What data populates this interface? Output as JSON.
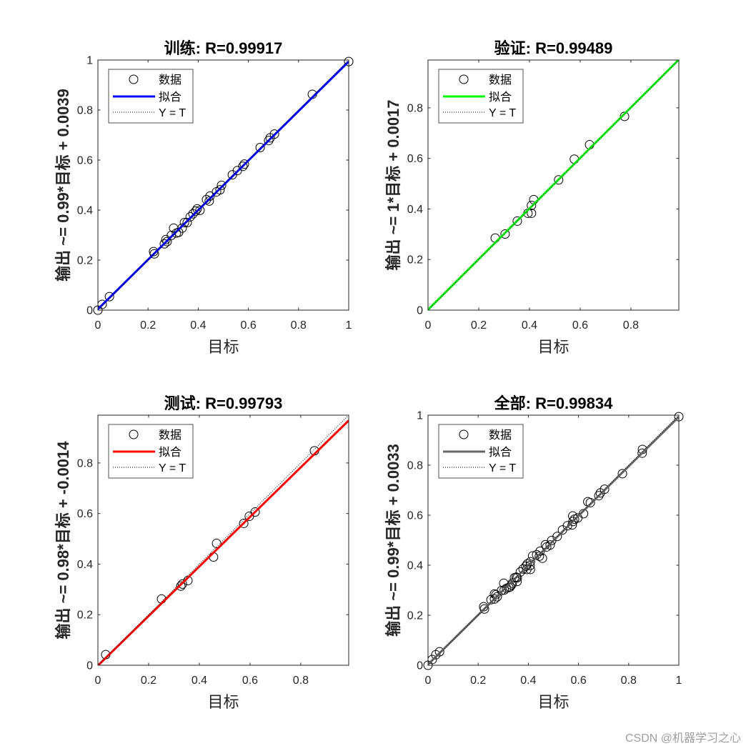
{
  "figure": {
    "background": "#ffffff",
    "axes_color": "#262626",
    "watermark": "CSDN @机器学习之心",
    "watermark_color": "#9e9e9e"
  },
  "chart_data": [
    {
      "type": "scatter",
      "title": "训练: R=0.99917",
      "xlabel": "目标",
      "ylabel": "输出 ~= 0.99*目标 + 0.0039",
      "xlim": [
        0,
        1
      ],
      "ylim": [
        0,
        1
      ],
      "xticks": [
        0,
        0.2,
        0.4,
        0.6,
        0.8,
        1
      ],
      "xtick_labels": [
        "0",
        "0.2",
        "0.4",
        "0.6",
        "0.8",
        "1"
      ],
      "yticks": [
        0,
        0.2,
        0.4,
        0.6,
        0.8,
        1
      ],
      "ytick_labels": [
        "0",
        "0.2",
        "0.4",
        "0.6",
        "0.8",
        "1"
      ],
      "grid": false,
      "legend_position": "top-left",
      "series": [
        {
          "name": "数据",
          "type": "scatter",
          "marker": "circle",
          "color": "#000000",
          "x": [
            0,
            0.017,
            0.046,
            0.222,
            0.225,
            0.265,
            0.271,
            0.276,
            0.293,
            0.302,
            0.313,
            0.322,
            0.336,
            0.345,
            0.356,
            0.368,
            0.379,
            0.39,
            0.396,
            0.407,
            0.433,
            0.444,
            0.447,
            0.473,
            0.487,
            0.493,
            0.536,
            0.556,
            0.578,
            0.584,
            0.647,
            0.681,
            0.687,
            0.704,
            0.855,
            1.0
          ],
          "y": [
            0,
            0.023,
            0.054,
            0.234,
            0.225,
            0.265,
            0.282,
            0.274,
            0.299,
            0.328,
            0.308,
            0.311,
            0.328,
            0.35,
            0.35,
            0.373,
            0.385,
            0.396,
            0.405,
            0.399,
            0.442,
            0.436,
            0.456,
            0.473,
            0.481,
            0.499,
            0.541,
            0.558,
            0.575,
            0.584,
            0.65,
            0.678,
            0.689,
            0.704,
            0.863,
            0.994
          ]
        },
        {
          "name": "拟合",
          "type": "line",
          "slope": 0.99,
          "intercept": 0.0039,
          "style": "solid",
          "color": "#0000ff"
        },
        {
          "name": "Y = T",
          "type": "line",
          "slope": 1,
          "intercept": 0,
          "style": "dotted",
          "color": "#000000"
        }
      ]
    },
    {
      "type": "scatter",
      "title": "验证: R=0.99489",
      "xlabel": "目标",
      "ylabel": "输出 ~= 1*目标 + 0.0017",
      "xlim": [
        0,
        0.989
      ],
      "ylim": [
        0,
        0.989
      ],
      "xticks": [
        0,
        0.2,
        0.4,
        0.6,
        0.8
      ],
      "xtick_labels": [
        "0",
        "0.2",
        "0.4",
        "0.6",
        "0.8"
      ],
      "yticks": [
        0,
        0.2,
        0.4,
        0.6,
        0.8
      ],
      "ytick_labels": [
        "0",
        "0.2",
        "0.4",
        "0.6",
        "0.8"
      ],
      "grid": false,
      "legend_position": "top-left",
      "series": [
        {
          "name": "数据",
          "type": "scatter",
          "marker": "circle",
          "color": "#000000",
          "x": [
            0.265,
            0.304,
            0.352,
            0.394,
            0.408,
            0.408,
            0.417,
            0.515,
            0.577,
            0.637,
            0.775
          ],
          "y": [
            0.285,
            0.301,
            0.352,
            0.383,
            0.383,
            0.414,
            0.437,
            0.515,
            0.597,
            0.654,
            0.766
          ]
        },
        {
          "name": "拟合",
          "type": "line",
          "slope": 1,
          "intercept": 0.0017,
          "style": "solid",
          "color": "#00ff00"
        },
        {
          "name": "Y = T",
          "type": "line",
          "slope": 1,
          "intercept": 0,
          "style": "dotted",
          "color": "#000000"
        }
      ]
    },
    {
      "type": "scatter",
      "title": "测试: R=0.99793",
      "xlabel": "目标",
      "ylabel": "输出 ~= 0.98*目标 + -0.0014",
      "xlim": [
        0,
        0.989
      ],
      "ylim": [
        0,
        0.989
      ],
      "xticks": [
        0,
        0.2,
        0.4,
        0.6,
        0.8
      ],
      "xtick_labels": [
        "0",
        "0.2",
        "0.4",
        "0.6",
        "0.8"
      ],
      "yticks": [
        0,
        0.2,
        0.4,
        0.6,
        0.8
      ],
      "ytick_labels": [
        "0",
        "0.2",
        "0.4",
        "0.6",
        "0.8"
      ],
      "grid": false,
      "legend_position": "top-left",
      "series": [
        {
          "name": "数据",
          "type": "scatter",
          "marker": "circle",
          "color": "#000000",
          "x": [
            0.031,
            0.251,
            0.327,
            0.333,
            0.355,
            0.456,
            0.468,
            0.575,
            0.597,
            0.62,
            0.854
          ],
          "y": [
            0.042,
            0.262,
            0.313,
            0.321,
            0.335,
            0.428,
            0.482,
            0.561,
            0.589,
            0.606,
            0.848
          ]
        },
        {
          "name": "拟合",
          "type": "line",
          "slope": 0.98,
          "intercept": -0.0014,
          "style": "solid",
          "color": "#ff0000"
        },
        {
          "name": "Y = T",
          "type": "line",
          "slope": 1,
          "intercept": 0,
          "style": "dotted",
          "color": "#000000"
        }
      ]
    },
    {
      "type": "scatter",
      "title": "全部: R=0.99834",
      "xlabel": "目标",
      "ylabel": "输出 ~= 0.99*目标 + 0.0033",
      "xlim": [
        0,
        1
      ],
      "ylim": [
        0,
        1
      ],
      "xticks": [
        0,
        0.2,
        0.4,
        0.6,
        0.8,
        1
      ],
      "xtick_labels": [
        "0",
        "0.2",
        "0.4",
        "0.6",
        "0.8",
        "1"
      ],
      "yticks": [
        0,
        0.2,
        0.4,
        0.6,
        0.8,
        1
      ],
      "ytick_labels": [
        "0",
        "0.2",
        "0.4",
        "0.6",
        "0.8",
        "1"
      ],
      "grid": false,
      "legend_position": "top-left",
      "series": [
        {
          "name": "数据",
          "type": "scatter",
          "marker": "circle",
          "color": "#000000",
          "x": [
            0,
            0.017,
            0.046,
            0.222,
            0.225,
            0.265,
            0.271,
            0.276,
            0.293,
            0.302,
            0.313,
            0.322,
            0.336,
            0.345,
            0.356,
            0.368,
            0.379,
            0.39,
            0.396,
            0.407,
            0.433,
            0.444,
            0.447,
            0.473,
            0.487,
            0.493,
            0.536,
            0.556,
            0.578,
            0.584,
            0.647,
            0.681,
            0.687,
            0.704,
            0.855,
            1.0,
            0.265,
            0.304,
            0.352,
            0.394,
            0.408,
            0.408,
            0.417,
            0.515,
            0.577,
            0.637,
            0.775,
            0.031,
            0.251,
            0.327,
            0.333,
            0.355,
            0.456,
            0.468,
            0.575,
            0.597,
            0.62,
            0.854
          ],
          "y": [
            0,
            0.023,
            0.054,
            0.234,
            0.225,
            0.265,
            0.282,
            0.274,
            0.299,
            0.328,
            0.308,
            0.311,
            0.328,
            0.35,
            0.35,
            0.373,
            0.385,
            0.396,
            0.405,
            0.399,
            0.442,
            0.436,
            0.456,
            0.473,
            0.481,
            0.499,
            0.541,
            0.558,
            0.575,
            0.584,
            0.65,
            0.678,
            0.689,
            0.704,
            0.863,
            0.994,
            0.285,
            0.301,
            0.352,
            0.383,
            0.383,
            0.414,
            0.437,
            0.515,
            0.597,
            0.654,
            0.766,
            0.042,
            0.262,
            0.313,
            0.321,
            0.335,
            0.428,
            0.482,
            0.561,
            0.589,
            0.606,
            0.848
          ]
        },
        {
          "name": "拟合",
          "type": "line",
          "slope": 0.99,
          "intercept": 0.0033,
          "style": "solid",
          "color": "#666666"
        },
        {
          "name": "Y = T",
          "type": "line",
          "slope": 1,
          "intercept": 0,
          "style": "dotted",
          "color": "#000000"
        }
      ]
    }
  ]
}
